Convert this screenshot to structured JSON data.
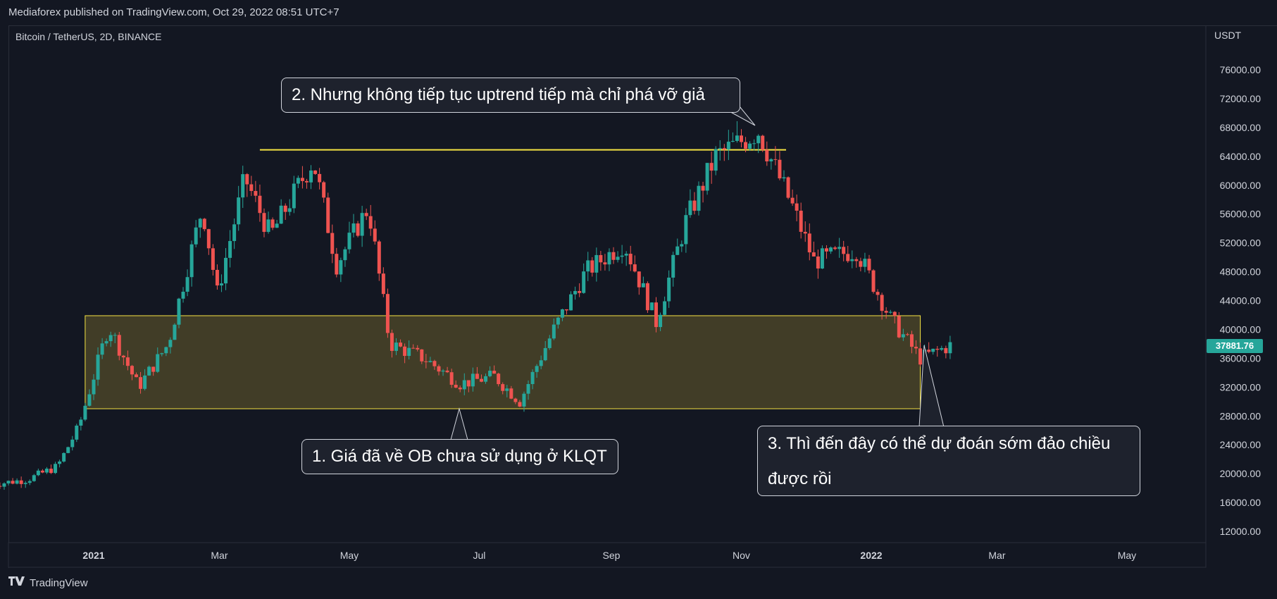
{
  "header": {
    "published_by": "Mediaforex published on TradingView.com, Oct 29, 2022 08:51 UTC+7"
  },
  "symbol": {
    "title": "Bitcoin / TetherUS, 2D, BINANCE"
  },
  "price_axis": {
    "currency": "USDT"
  },
  "last_price": "37881.76",
  "footer": {
    "brand": "TradingView"
  },
  "annotations": {
    "a1": "1. Giá đã về OB chưa sử dụng ở KLQT",
    "a2": "2. Nhưng không tiếp tục uptrend tiếp mà chỉ phá vỡ giả",
    "a3_line1": "3. Thì đến đây có thể dự đoán sớm đảo chiều",
    "a3_line2": "được rồi"
  },
  "colors": {
    "background": "#131722",
    "up": "#26a69a",
    "down": "#ef5350",
    "zone_fill": "#4a4428",
    "zone_border": "#f5e342",
    "resistance_line": "#f5e342",
    "grid": "#2a2e39"
  },
  "chart_data": {
    "type": "candlestick",
    "title": "Bitcoin / TetherUS, 2D, BINANCE",
    "x_ticks": [
      "2021",
      "Mar",
      "May",
      "Jul",
      "Sep",
      "Nov",
      "2022",
      "Mar",
      "May"
    ],
    "y_ticks": [
      12000,
      16000,
      20000,
      24000,
      28000,
      32000,
      36000,
      40000,
      44000,
      48000,
      52000,
      56000,
      60000,
      64000,
      68000,
      72000,
      76000
    ],
    "ylim": [
      9600,
      81000
    ],
    "y_unit": "USDT",
    "last_price": 37881.76,
    "order_block_zone": {
      "low": 29000,
      "high": 41900,
      "start": "2020-12-28",
      "end": "2022-01-24"
    },
    "resistance_level": {
      "price": 64900,
      "start": "2021-03-20",
      "end": "2021-11-22"
    },
    "closes_approx": [
      {
        "date": "2020-11-14",
        "close": 18500
      },
      {
        "date": "2020-12-01",
        "close": 19200
      },
      {
        "date": "2020-12-15",
        "close": 21000
      },
      {
        "date": "2020-12-25",
        "close": 26500
      },
      {
        "date": "2021-01-08",
        "close": 40500
      },
      {
        "date": "2021-01-22",
        "close": 32000
      },
      {
        "date": "2021-02-05",
        "close": 38000
      },
      {
        "date": "2021-02-21",
        "close": 57000
      },
      {
        "date": "2021-02-28",
        "close": 45000
      },
      {
        "date": "2021-03-13",
        "close": 61000
      },
      {
        "date": "2021-03-25",
        "close": 53000
      },
      {
        "date": "2021-04-14",
        "close": 63500
      },
      {
        "date": "2021-04-25",
        "close": 49000
      },
      {
        "date": "2021-05-10",
        "close": 57000
      },
      {
        "date": "2021-05-20",
        "close": 38000
      },
      {
        "date": "2021-06-05",
        "close": 36000
      },
      {
        "date": "2021-06-22",
        "close": 32500
      },
      {
        "date": "2021-07-08",
        "close": 33500
      },
      {
        "date": "2021-07-20",
        "close": 30000
      },
      {
        "date": "2021-08-05",
        "close": 40000
      },
      {
        "date": "2021-08-20",
        "close": 48000
      },
      {
        "date": "2021-09-07",
        "close": 52000
      },
      {
        "date": "2021-09-22",
        "close": 41000
      },
      {
        "date": "2021-10-06",
        "close": 55000
      },
      {
        "date": "2021-10-20",
        "close": 64000
      },
      {
        "date": "2021-11-09",
        "close": 67500
      },
      {
        "date": "2021-11-25",
        "close": 57000
      },
      {
        "date": "2021-12-05",
        "close": 49500
      },
      {
        "date": "2021-12-25",
        "close": 51000
      },
      {
        "date": "2022-01-10",
        "close": 41500
      },
      {
        "date": "2022-01-24",
        "close": 36000
      },
      {
        "date": "2022-02-08",
        "close": 37881.76
      }
    ]
  }
}
